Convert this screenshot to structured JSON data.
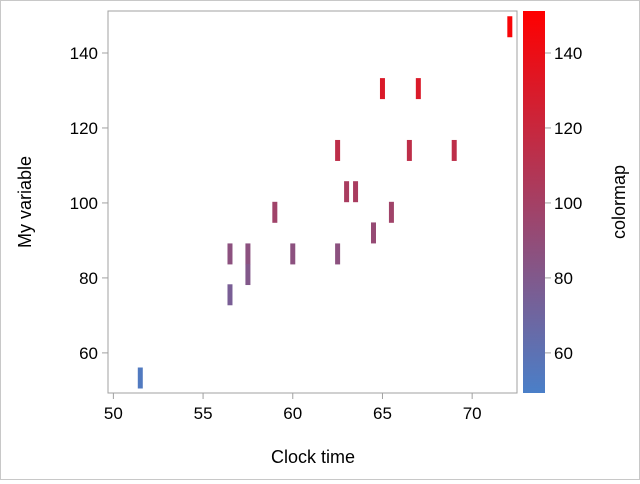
{
  "chart_data": {
    "type": "scatter",
    "title": "",
    "xlabel": "Clock time",
    "ylabel": "My variable",
    "colorbar_label": "colormap",
    "xlim": [
      49.7,
      72.5
    ],
    "ylim": [
      49.3,
      151.2
    ],
    "xticks": [
      50,
      55,
      60,
      65,
      70
    ],
    "yticks": [
      60,
      80,
      100,
      120,
      140
    ],
    "colorbar_ticks": [
      60,
      80,
      100,
      120,
      140
    ],
    "colorbar_range": [
      49.3,
      151.2
    ],
    "colormap": [
      "#4a7fc8",
      "#ff0000"
    ],
    "grid": false,
    "bar_half_height": 2.8,
    "points": [
      {
        "x": 51.5,
        "y": 53.3
      },
      {
        "x": 56.5,
        "y": 86.4
      },
      {
        "x": 56.5,
        "y": 75.5
      },
      {
        "x": 57.5,
        "y": 86.4
      },
      {
        "x": 57.5,
        "y": 80.9
      },
      {
        "x": 59.0,
        "y": 97.5
      },
      {
        "x": 60.0,
        "y": 86.4
      },
      {
        "x": 62.5,
        "y": 86.4
      },
      {
        "x": 64.5,
        "y": 92.0
      },
      {
        "x": 65.5,
        "y": 97.5
      },
      {
        "x": 63.0,
        "y": 103.0
      },
      {
        "x": 63.5,
        "y": 103.0
      },
      {
        "x": 62.5,
        "y": 114.0
      },
      {
        "x": 66.5,
        "y": 114.0
      },
      {
        "x": 69.0,
        "y": 114.0
      },
      {
        "x": 65.0,
        "y": 130.5
      },
      {
        "x": 67.0,
        "y": 130.5
      },
      {
        "x": 72.1,
        "y": 147.0
      }
    ]
  }
}
